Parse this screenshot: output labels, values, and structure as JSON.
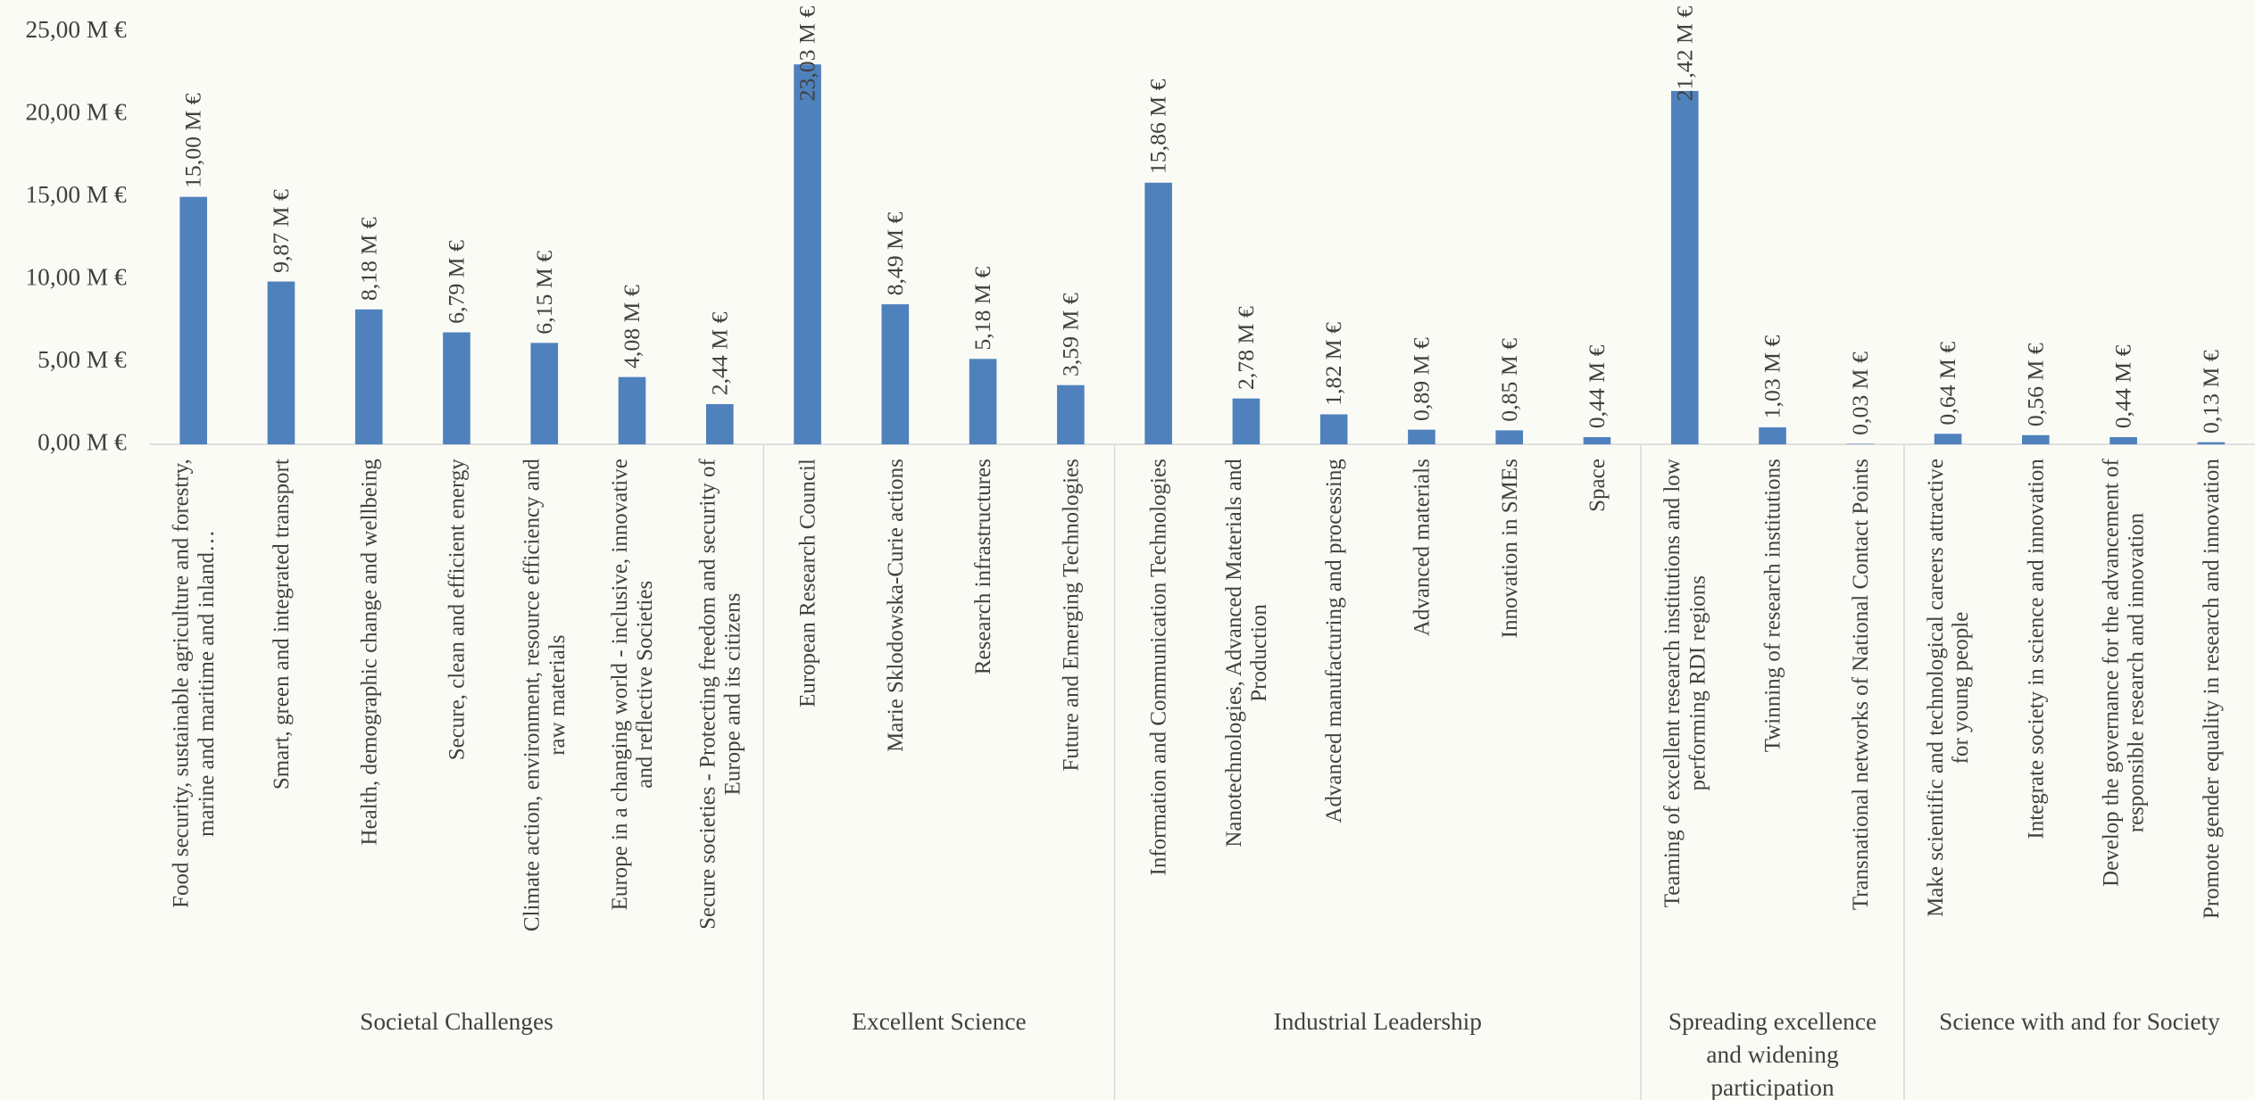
{
  "chart_data": {
    "type": "bar",
    "color": "#4f81bd",
    "ylim": [
      0,
      25
    ],
    "yticks": [
      {
        "value": 0,
        "label": "0,00 M €"
      },
      {
        "value": 5,
        "label": "5,00 M €"
      },
      {
        "value": 10,
        "label": "10,00 M €"
      },
      {
        "value": 15,
        "label": "15,00 M €"
      },
      {
        "value": 20,
        "label": "20,00 M €"
      },
      {
        "value": 25,
        "label": "25,00 M €"
      }
    ],
    "groups": [
      {
        "name": "Societal Challenges",
        "categories": [
          "Food security, sustainable agriculture and forestry, marine and maritime and inland…",
          "Smart, green and integrated transport",
          "Health, demographic change and wellbeing",
          "Secure, clean and efficient energy",
          "Climate action, environment, resource efficiency and raw materials",
          "Europe in a changing world - inclusive, innovative and reflective Societies",
          "Secure societies - Protecting freedom and security of Europe and its citizens"
        ],
        "values": [
          15.0,
          9.87,
          8.18,
          6.79,
          6.15,
          4.08,
          2.44
        ],
        "value_labels": [
          "15,00 M €",
          "9,87 M €",
          "8,18 M €",
          "6,79 M €",
          "6,15 M €",
          "4,08 M €",
          "2,44 M €"
        ]
      },
      {
        "name": "Excellent Science",
        "categories": [
          "European Research Council",
          "Marie Sklodowska-Curie actions",
          "Research infrastructures",
          "Future and Emerging Technologies"
        ],
        "values": [
          23.03,
          8.49,
          5.18,
          3.59
        ],
        "value_labels": [
          "23,03 M €",
          "8,49 M €",
          "5,18 M €",
          "3,59 M €"
        ]
      },
      {
        "name": "Industrial Leadership",
        "categories": [
          "Information and Communication Technologies",
          "Nanotechnologies, Advanced Materials and Production",
          "Advanced manufacturing and processing",
          "Advanced materials",
          "Innovation in SMEs",
          "Space"
        ],
        "values": [
          15.86,
          2.78,
          1.82,
          0.89,
          0.85,
          0.44
        ],
        "value_labels": [
          "15,86 M €",
          "2,78 M €",
          "1,82 M €",
          "0,89 M €",
          "0,85 M €",
          "0,44 M €"
        ]
      },
      {
        "name": "Spreading excellence and widening participation",
        "categories": [
          "Teaming of excellent research institutions and low performing RDI regions",
          "Twinning of research institutions",
          "Transnational networks of National Contact Points"
        ],
        "values": [
          21.42,
          1.03,
          0.03
        ],
        "value_labels": [
          "21,42 M €",
          "1,03 M €",
          "0,03 M €"
        ]
      },
      {
        "name": "Science with and for Society",
        "categories": [
          "Make scientific and technological careers attractive for young people",
          "Integrate society in science and innovation",
          "Develop the governance for the advancement of responsible research and innovation",
          "Promote gender equality in research and innovation"
        ],
        "values": [
          0.64,
          0.56,
          0.44,
          0.13
        ],
        "value_labels": [
          "0,64 M €",
          "0,56 M €",
          "0,44 M €",
          "0,13 M €"
        ]
      }
    ]
  }
}
